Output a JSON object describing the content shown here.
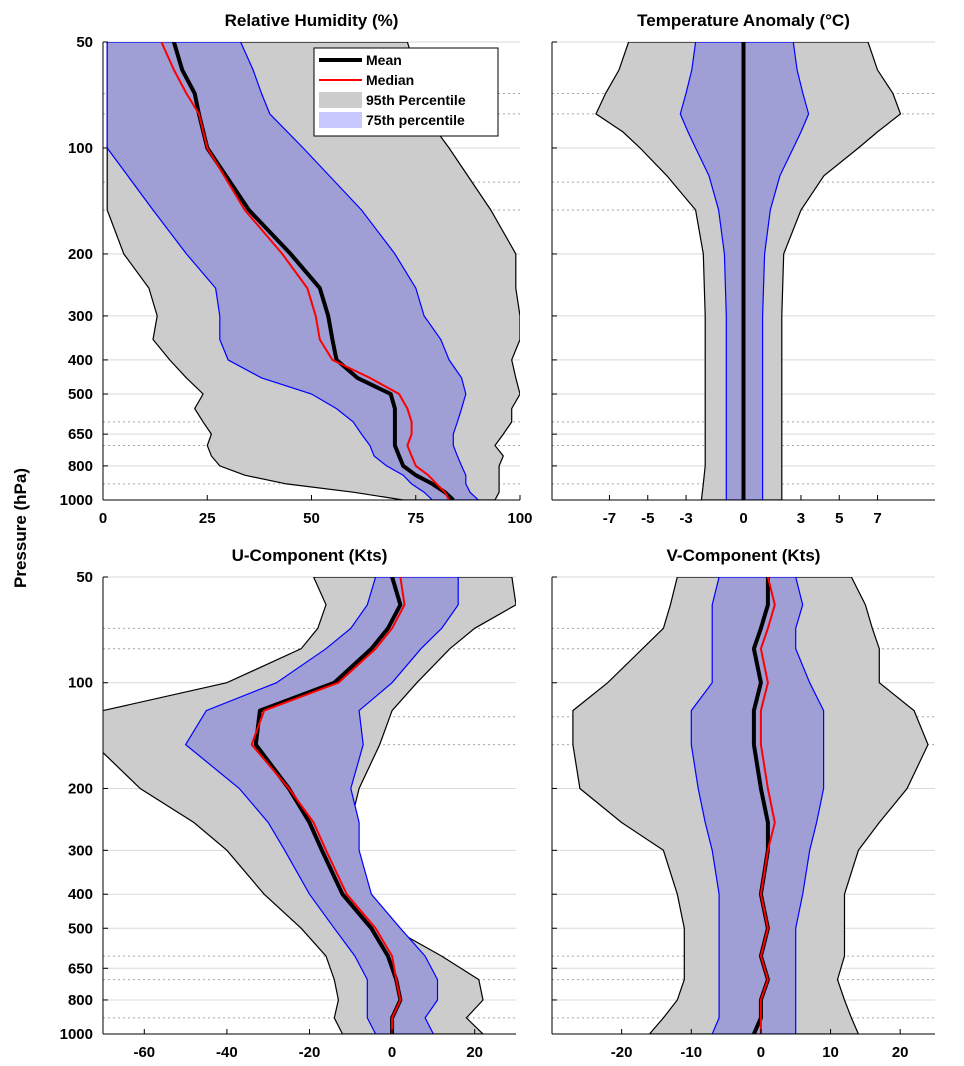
{
  "colors": {
    "p95_fill": "#cccccc",
    "p95_edge": "#000000",
    "p75_fill": "#9f9fd6",
    "p75_edge": "#0000ff",
    "mean": "#000000",
    "median": "#ff0000",
    "grid_solid": "#d9d9d9",
    "grid_dotted": "#a6a6a6"
  },
  "y_axis_label": "Pressure (hPa)",
  "chart_data": [
    {
      "type": "area",
      "title": "Relative Humidity (%)",
      "xlim": [
        0,
        100
      ],
      "xticks": [
        0,
        25,
        50,
        75,
        100
      ],
      "ylim": [
        50,
        1000
      ],
      "yscale": "log",
      "yticks": [
        50,
        100,
        200,
        300,
        400,
        500,
        650,
        800,
        1000
      ],
      "ytick_labels": [
        "50",
        "100",
        "200",
        "300",
        "400",
        "500",
        "650",
        "800",
        "1000"
      ],
      "grid": true,
      "legend": {
        "placement": "top-right",
        "entries": [
          {
            "label": "Mean",
            "kind": "line",
            "color": "#000000"
          },
          {
            "label": "Median",
            "kind": "line",
            "color": "#ff0000"
          },
          {
            "label": "95th Percentile",
            "kind": "patch",
            "color": "#cccccc"
          },
          {
            "label": "75th percentile",
            "kind": "patch",
            "color": "#c9c9ff"
          }
        ]
      },
      "p": [
        50,
        60,
        70,
        80,
        100,
        150,
        200,
        250,
        300,
        350,
        400,
        450,
        500,
        550,
        600,
        650,
        700,
        750,
        800,
        850,
        900,
        950,
        1000
      ],
      "p95": {
        "lower": [
          1,
          1,
          1,
          1,
          1,
          1,
          5,
          11,
          13,
          12,
          16,
          20,
          24,
          22,
          24,
          26,
          25,
          26,
          28,
          34,
          44,
          60,
          72
        ],
        "upper": [
          73,
          75,
          76,
          77,
          83,
          93,
          99,
          99,
          100,
          100,
          98,
          99,
          100,
          98,
          98,
          96,
          94,
          96,
          95,
          95,
          95,
          95,
          94
        ]
      },
      "p75": {
        "lower": [
          1,
          1,
          1,
          1,
          1,
          12,
          20,
          27,
          28,
          28,
          30,
          38,
          50,
          56,
          60,
          62,
          64,
          65,
          68,
          72,
          74,
          77,
          79
        ],
        "upper": [
          33,
          36,
          38,
          40,
          48,
          62,
          70,
          75,
          77,
          81,
          83,
          86,
          87,
          86,
          85,
          84,
          84,
          85,
          86,
          87,
          87,
          88,
          90
        ]
      },
      "mean": [
        17,
        19,
        22,
        23,
        25,
        35,
        45,
        52,
        54,
        55,
        56,
        61,
        69,
        70,
        70,
        70,
        70,
        71,
        72,
        75,
        79,
        82,
        84
      ],
      "median": [
        14,
        17,
        20,
        23,
        25,
        34,
        43,
        49,
        51,
        52,
        55,
        64,
        71,
        73,
        74,
        74,
        73,
        74,
        75,
        78,
        80,
        82,
        83
      ]
    },
    {
      "type": "area",
      "title": "Temperature Anomaly (°C)",
      "xlim": [
        -10,
        10
      ],
      "xticks": [
        -7,
        -5,
        -3,
        0,
        3,
        5,
        7
      ],
      "ylim": [
        50,
        1000
      ],
      "yscale": "log",
      "grid": true,
      "p": [
        50,
        60,
        70,
        80,
        90,
        100,
        120,
        150,
        200,
        300,
        400,
        500,
        650,
        800,
        900,
        1000
      ],
      "p95": {
        "lower": [
          -6,
          -6.5,
          -7.2,
          -7.7,
          -6.3,
          -5.4,
          -4.0,
          -2.5,
          -2.1,
          -2.0,
          -2.0,
          -2.0,
          -2.0,
          -2.0,
          -2.1,
          -2.2
        ],
        "upper": [
          6.5,
          7.0,
          7.8,
          8.2,
          7.0,
          6.0,
          4.2,
          3.0,
          2.1,
          2.0,
          2.0,
          2.0,
          2.0,
          2.0,
          2.0,
          2.0
        ]
      },
      "p75": {
        "lower": [
          -2.5,
          -2.7,
          -3.0,
          -3.3,
          -2.9,
          -2.5,
          -1.8,
          -1.3,
          -1.0,
          -0.9,
          -0.9,
          -0.9,
          -0.9,
          -0.9,
          -0.9,
          -0.9
        ],
        "upper": [
          2.6,
          2.8,
          3.1,
          3.4,
          3.0,
          2.6,
          1.9,
          1.4,
          1.1,
          1.0,
          1.0,
          1.0,
          1.0,
          1.0,
          1.0,
          1.0
        ]
      },
      "mean": [
        0,
        0,
        0,
        0,
        0,
        0,
        0,
        0,
        0,
        0,
        0,
        0,
        0,
        0,
        0,
        0
      ],
      "median": null
    },
    {
      "type": "area",
      "title": "U-Component (Kts)",
      "xlim": [
        -70,
        30
      ],
      "xticks": [
        -60,
        -40,
        -20,
        0,
        20
      ],
      "ylim": [
        50,
        1000
      ],
      "yscale": "log",
      "grid": true,
      "p": [
        50,
        60,
        70,
        80,
        100,
        120,
        150,
        200,
        250,
        300,
        400,
        500,
        600,
        700,
        800,
        900,
        1000
      ],
      "p95": {
        "lower": [
          -19,
          -16,
          -18,
          -22,
          -40,
          -70,
          -72,
          -61,
          -48,
          -40,
          -31,
          -22,
          -16,
          -14,
          -13,
          -14,
          -12
        ],
        "upper": [
          29,
          30,
          20,
          14,
          6,
          0,
          -3,
          -8,
          -10,
          -10,
          -7,
          0,
          12,
          21,
          22,
          18,
          22
        ]
      },
      "p75": {
        "lower": [
          -4,
          -6,
          -10,
          -16,
          -28,
          -45,
          -50,
          -37,
          -30,
          -26,
          -20,
          -14,
          -9,
          -6,
          -6,
          -6,
          -4
        ],
        "upper": [
          16,
          16,
          12,
          7,
          0,
          -8,
          -7,
          -10,
          -8,
          -8,
          -5,
          2,
          8,
          11,
          11,
          8,
          10
        ]
      },
      "mean": [
        0,
        2,
        -1,
        -5,
        -14,
        -32,
        -33,
        -25,
        -20,
        -17,
        -12,
        -5,
        -1,
        1,
        2,
        0,
        0
      ],
      "median": [
        2,
        3,
        0,
        -4,
        -13,
        -31,
        -34,
        -25,
        -19,
        -16,
        -11,
        -4,
        0,
        1,
        2,
        0,
        0
      ]
    },
    {
      "type": "area",
      "title": "V-Component (Kts)",
      "xlim": [
        -30,
        25
      ],
      "xticks": [
        -20,
        -10,
        0,
        10,
        20
      ],
      "ylim": [
        50,
        1000
      ],
      "yscale": "log",
      "grid": true,
      "p": [
        50,
        60,
        70,
        80,
        100,
        120,
        150,
        200,
        250,
        300,
        400,
        500,
        600,
        700,
        800,
        900,
        1000
      ],
      "p95": {
        "lower": [
          -12,
          -13,
          -14,
          -17,
          -22,
          -27,
          -27,
          -26,
          -20,
          -14,
          -12,
          -11,
          -11,
          -11,
          -12,
          -14,
          -16
        ],
        "upper": [
          13,
          15,
          16,
          17,
          17,
          22,
          24,
          21,
          17,
          14,
          12,
          12,
          12,
          11,
          12,
          13,
          14
        ]
      },
      "p75": {
        "lower": [
          -6,
          -7,
          -7,
          -7,
          -7,
          -10,
          -10,
          -9,
          -8,
          -7,
          -6,
          -6,
          -6,
          -6,
          -6,
          -6,
          -7
        ],
        "upper": [
          5,
          6,
          5,
          5,
          7,
          9,
          9,
          9,
          8,
          7,
          6,
          5,
          5,
          5,
          5,
          5,
          5
        ]
      },
      "mean": [
        1,
        1,
        0,
        -1,
        0,
        -1,
        -1,
        0,
        1,
        1,
        0,
        1,
        0,
        1,
        0,
        0,
        -1
      ],
      "median": [
        1,
        2,
        1,
        0,
        1,
        0,
        0,
        1,
        2,
        1,
        0,
        1,
        0,
        1,
        0,
        0,
        0
      ]
    }
  ]
}
